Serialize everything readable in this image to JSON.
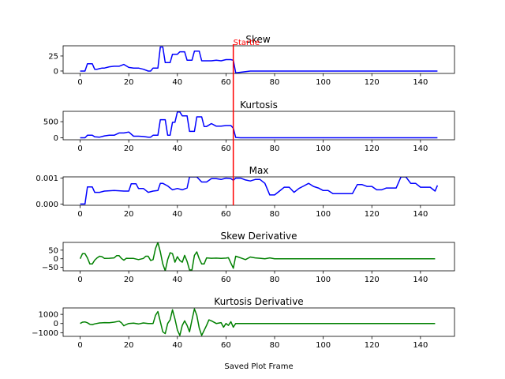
{
  "figure": {
    "xlabel": "Saved Plot Frame",
    "annotation": {
      "text": "Startle",
      "x": 63,
      "color": "#ff0000",
      "in_panels": [
        0,
        1,
        2
      ]
    }
  },
  "chart_data": [
    {
      "type": "line",
      "title": "Skew",
      "color": "#0000ff",
      "xlim": [
        -7,
        154
      ],
      "ylim": [
        -4,
        42
      ],
      "xticks": [
        0,
        20,
        40,
        60,
        80,
        100,
        120,
        140
      ],
      "yticks": [
        0,
        25
      ],
      "ytick_labels": [
        "0",
        "25"
      ],
      "x": [
        0,
        1,
        2,
        3,
        4,
        5,
        6,
        7,
        8,
        9,
        10,
        12,
        14,
        16,
        18,
        20,
        22,
        24,
        26,
        28,
        29,
        30,
        31,
        32,
        33,
        34,
        35,
        36,
        37,
        38,
        39,
        40,
        41,
        42,
        43,
        44,
        45,
        46,
        47,
        48,
        49,
        50,
        51,
        52,
        54,
        56,
        58,
        60,
        61,
        62,
        63,
        64,
        66,
        68,
        70,
        75,
        80,
        90,
        100,
        110,
        120,
        130,
        140,
        147
      ],
      "values": [
        0,
        0,
        0,
        12,
        12,
        12,
        3,
        3,
        4,
        5,
        5,
        7,
        8,
        8,
        11,
        6,
        5,
        5,
        3,
        0,
        0,
        5,
        5,
        5,
        40,
        40,
        14,
        14,
        14,
        28,
        28,
        28,
        32,
        32,
        32,
        18,
        18,
        18,
        33,
        33,
        33,
        17,
        17,
        17,
        17,
        18,
        17,
        19,
        19,
        19,
        18,
        -3,
        -2,
        -1,
        0,
        0,
        0,
        0,
        0,
        0,
        0,
        0,
        0,
        0
      ]
    },
    {
      "type": "line",
      "title": "Kurtosis",
      "color": "#0000ff",
      "xlim": [
        -7,
        154
      ],
      "ylim": [
        -60,
        820
      ],
      "xticks": [
        0,
        20,
        40,
        60,
        80,
        100,
        120,
        140
      ],
      "yticks": [
        0,
        500
      ],
      "ytick_labels": [
        "0",
        "500"
      ],
      "x": [
        0,
        2,
        3,
        4,
        5,
        6,
        8,
        10,
        12,
        14,
        16,
        18,
        20,
        22,
        24,
        26,
        28,
        29,
        30,
        31,
        32,
        33,
        34,
        35,
        36,
        37,
        38,
        39,
        40,
        41,
        42,
        43,
        44,
        45,
        46,
        47,
        48,
        49,
        50,
        51,
        52,
        54,
        56,
        58,
        60,
        61,
        62,
        63,
        64,
        66,
        70,
        80,
        100,
        120,
        140,
        147
      ],
      "values": [
        0,
        0,
        80,
        80,
        80,
        30,
        20,
        60,
        80,
        80,
        150,
        150,
        180,
        50,
        50,
        40,
        20,
        20,
        80,
        80,
        80,
        560,
        560,
        560,
        80,
        80,
        480,
        480,
        800,
        800,
        680,
        680,
        680,
        200,
        200,
        200,
        650,
        650,
        650,
        350,
        350,
        440,
        360,
        360,
        380,
        380,
        380,
        300,
        10,
        0,
        0,
        0,
        0,
        0,
        0,
        0
      ]
    },
    {
      "type": "line",
      "title": "Max",
      "color": "#0000ff",
      "xlim": [
        -7,
        154
      ],
      "ylim": [
        -5e-05,
        0.00105
      ],
      "xticks": [
        0,
        20,
        40,
        60,
        80,
        100,
        120,
        140
      ],
      "yticks": [
        0,
        0.001
      ],
      "ytick_labels": [
        "0.000",
        "0.001"
      ],
      "x": [
        0,
        2,
        3,
        4,
        5,
        6,
        8,
        10,
        14,
        18,
        20,
        21,
        22,
        23,
        24,
        26,
        28,
        30,
        32,
        33,
        34,
        36,
        38,
        40,
        42,
        44,
        45,
        46,
        48,
        50,
        52,
        54,
        56,
        58,
        60,
        62,
        63,
        64,
        66,
        68,
        70,
        72,
        74,
        76,
        78,
        79,
        80,
        82,
        84,
        86,
        88,
        90,
        92,
        94,
        96,
        98,
        100,
        102,
        104,
        106,
        108,
        110,
        112,
        114,
        116,
        118,
        120,
        122,
        124,
        126,
        128,
        130,
        132,
        133,
        134,
        136,
        138,
        140,
        142,
        144,
        146,
        147
      ],
      "values": [
        0,
        0,
        0.00066,
        0.00066,
        0.00066,
        0.00045,
        0.00045,
        0.0005,
        0.00052,
        0.0005,
        0.0005,
        0.00078,
        0.00078,
        0.00078,
        0.0006,
        0.0006,
        0.00045,
        0.0005,
        0.00052,
        0.0008,
        0.0008,
        0.0007,
        0.00055,
        0.0006,
        0.00055,
        0.00062,
        0.00105,
        0.00105,
        0.00105,
        0.00085,
        0.00085,
        0.00098,
        0.00098,
        0.00095,
        0.001,
        0.00098,
        0.00092,
        0.001,
        0.001,
        0.00093,
        0.00089,
        0.00095,
        0.00095,
        0.0008,
        0.00035,
        0.00035,
        0.00035,
        0.0005,
        0.00065,
        0.00065,
        0.00045,
        0.0006,
        0.0007,
        0.0008,
        0.00068,
        0.00062,
        0.00052,
        0.00052,
        0.0004,
        0.0004,
        0.0004,
        0.0004,
        0.0004,
        0.00075,
        0.00075,
        0.00068,
        0.00068,
        0.00055,
        0.00055,
        0.00062,
        0.00062,
        0.00062,
        0.00105,
        0.00105,
        0.00105,
        0.0008,
        0.0008,
        0.00065,
        0.00065,
        0.00065,
        0.0005,
        0.00072
      ]
    },
    {
      "type": "line",
      "title": "Skew Derivative",
      "color": "#008000",
      "xlim": [
        -7,
        154
      ],
      "ylim": [
        -70,
        95
      ],
      "xticks": [
        0,
        20,
        40,
        60,
        80,
        100,
        120,
        140
      ],
      "yticks": [
        -50,
        0,
        50
      ],
      "ytick_labels": [
        "−50",
        "0",
        "50"
      ],
      "x": [
        0,
        1,
        2,
        3,
        4,
        5,
        6,
        7,
        8,
        9,
        10,
        12,
        14,
        15,
        16,
        17,
        18,
        19,
        20,
        22,
        24,
        26,
        27,
        28,
        29,
        30,
        31,
        32,
        33,
        34,
        35,
        36,
        37,
        38,
        39,
        40,
        41,
        42,
        43,
        44,
        45,
        46,
        47,
        48,
        49,
        50,
        51,
        52,
        54,
        56,
        58,
        60,
        61,
        62,
        63,
        64,
        65,
        66,
        68,
        70,
        72,
        74,
        76,
        78,
        80,
        90,
        100,
        110,
        120,
        130,
        140,
        146
      ],
      "values": [
        0,
        30,
        30,
        5,
        -30,
        -30,
        -8,
        5,
        15,
        12,
        2,
        3,
        5,
        18,
        18,
        2,
        -8,
        3,
        2,
        2,
        -5,
        2,
        15,
        15,
        -10,
        -5,
        60,
        95,
        40,
        -30,
        -70,
        -5,
        35,
        30,
        -20,
        12,
        -10,
        -20,
        20,
        -15,
        -65,
        -65,
        20,
        40,
        0,
        -30,
        -30,
        5,
        3,
        4,
        2,
        4,
        6,
        -25,
        -55,
        15,
        10,
        5,
        -5,
        10,
        5,
        3,
        0,
        5,
        0,
        0,
        0,
        0,
        0,
        0,
        0,
        0
      ]
    },
    {
      "type": "line",
      "title": "Kurtosis Derivative",
      "color": "#008000",
      "xlim": [
        -7,
        154
      ],
      "ylim": [
        -1400,
        1700
      ],
      "xticks": [
        0,
        20,
        40,
        60,
        80,
        100,
        120,
        140
      ],
      "yticks": [
        -1000,
        0,
        1000
      ],
      "ytick_labels": [
        "−1000",
        "0",
        "1000"
      ],
      "x": [
        0,
        1,
        2,
        3,
        4,
        5,
        6,
        8,
        10,
        12,
        14,
        16,
        17,
        18,
        19,
        20,
        22,
        24,
        26,
        28,
        30,
        31,
        32,
        33,
        34,
        35,
        36,
        37,
        38,
        39,
        40,
        41,
        42,
        43,
        44,
        45,
        46,
        47,
        48,
        49,
        50,
        52,
        53,
        54,
        56,
        58,
        59,
        60,
        61,
        62,
        63,
        64,
        66,
        70,
        80,
        100,
        120,
        140,
        146
      ],
      "values": [
        0,
        150,
        180,
        80,
        -80,
        -120,
        -40,
        60,
        100,
        80,
        150,
        250,
        80,
        -250,
        -100,
        0,
        50,
        -50,
        60,
        0,
        0,
        900,
        1300,
        200,
        -900,
        -1100,
        0,
        400,
        1500,
        500,
        -700,
        -1300,
        -200,
        300,
        -200,
        -900,
        400,
        1600,
        900,
        -500,
        -1300,
        -200,
        400,
        300,
        0,
        100,
        -400,
        0,
        -200,
        200,
        -400,
        0,
        0,
        0,
        0,
        0,
        0,
        0,
        0
      ]
    }
  ]
}
